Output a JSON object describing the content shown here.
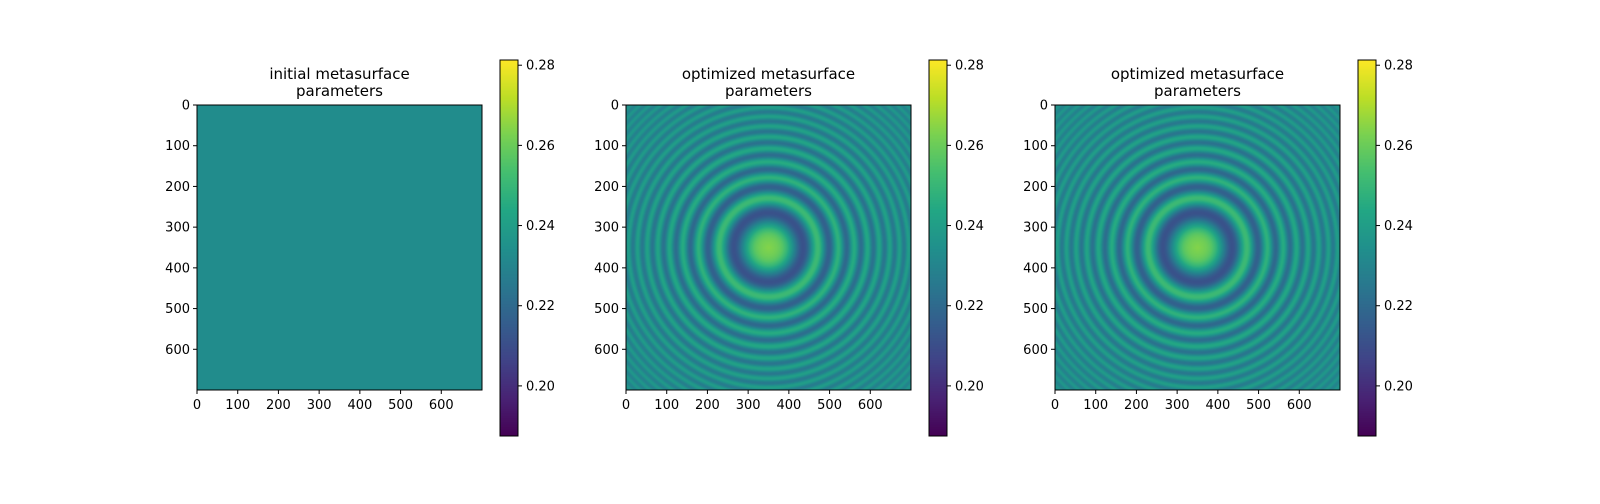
{
  "chart_data": [
    {
      "type": "heatmap",
      "title_lines": [
        "initial metasurface",
        "parameters"
      ],
      "x_ticks": [
        "0",
        "100",
        "200",
        "300",
        "400",
        "500",
        "600"
      ],
      "y_ticks": [
        "0",
        "100",
        "200",
        "300",
        "400",
        "500",
        "600"
      ],
      "xlim": [
        0,
        700
      ],
      "ylim": [
        0,
        700
      ],
      "y_inverted": true,
      "colorbar": {
        "ticks": [
          "0.20",
          "0.22",
          "0.24",
          "0.26",
          "0.28"
        ],
        "range": [
          0.1875,
          0.2813
        ],
        "colormap": "viridis"
      },
      "field": {
        "pattern": "uniform",
        "value": 0.233
      }
    },
    {
      "type": "heatmap",
      "title_lines": [
        "optimized metasurface",
        "parameters"
      ],
      "x_ticks": [
        "0",
        "100",
        "200",
        "300",
        "400",
        "500",
        "600"
      ],
      "y_ticks": [
        "0",
        "100",
        "200",
        "300",
        "400",
        "500",
        "600"
      ],
      "xlim": [
        0,
        700
      ],
      "ylim": [
        0,
        700
      ],
      "y_inverted": true,
      "colorbar": {
        "ticks": [
          "0.20",
          "0.22",
          "0.24",
          "0.26",
          "0.28"
        ],
        "range": [
          0.1875,
          0.2813
        ],
        "colormap": "viridis"
      },
      "field": {
        "pattern": "concentric-rings",
        "center": [
          350,
          350
        ],
        "baseline": 0.233,
        "center_value": 0.262,
        "first_dark_ring_value": 0.203,
        "max_amplitude": 0.031,
        "ring_radius_scale": 86,
        "decay_radius": 230
      }
    },
    {
      "type": "heatmap",
      "title_lines": [
        "optimized metasurface",
        "parameters"
      ],
      "x_ticks": [
        "0",
        "100",
        "200",
        "300",
        "400",
        "500",
        "600"
      ],
      "y_ticks": [
        "0",
        "100",
        "200",
        "300",
        "400",
        "500",
        "600"
      ],
      "xlim": [
        0,
        700
      ],
      "ylim": [
        0,
        700
      ],
      "y_inverted": true,
      "colorbar": {
        "ticks": [
          "0.20",
          "0.22",
          "0.24",
          "0.26",
          "0.28"
        ],
        "range": [
          0.1875,
          0.2813
        ],
        "colormap": "viridis"
      },
      "field": {
        "pattern": "concentric-rings",
        "center": [
          350,
          350
        ],
        "baseline": 0.233,
        "center_value": 0.262,
        "first_dark_ring_value": 0.203,
        "max_amplitude": 0.031,
        "ring_radius_scale": 86,
        "decay_radius": 230
      }
    }
  ]
}
